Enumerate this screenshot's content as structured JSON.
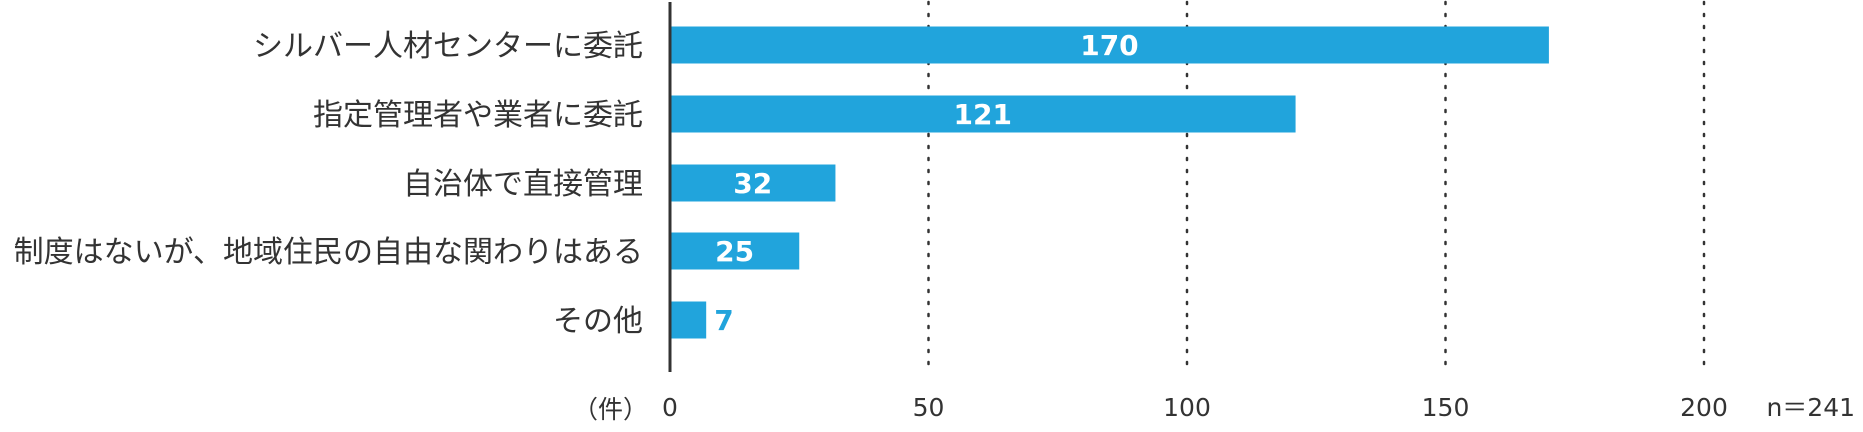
{
  "chart_data": {
    "type": "bar",
    "orientation": "horizontal",
    "categories": [
      "シルバー人材センターに委託",
      "指定管理者や業者に委託",
      "自治体で直接管理",
      "制度はないが、地域住民の自由な関わりはある",
      "その他"
    ],
    "values": [
      170,
      121,
      32,
      25,
      7
    ],
    "value_labels": [
      "170",
      "121",
      "32",
      "25",
      "7"
    ],
    "xlim": [
      0,
      200
    ],
    "x_ticks": [
      0,
      50,
      100,
      150,
      200
    ],
    "x_tick_labels": [
      "0",
      "50",
      "100",
      "150",
      "200"
    ],
    "xlabel": "（件）",
    "title": "",
    "grid": "vertical dotted",
    "note": "n＝241",
    "colors": {
      "bar": "#21a4dc",
      "label_inside": "#ffffff",
      "label_outside": "#21a4dc",
      "axis": "#333333",
      "grid": "#333333"
    }
  }
}
